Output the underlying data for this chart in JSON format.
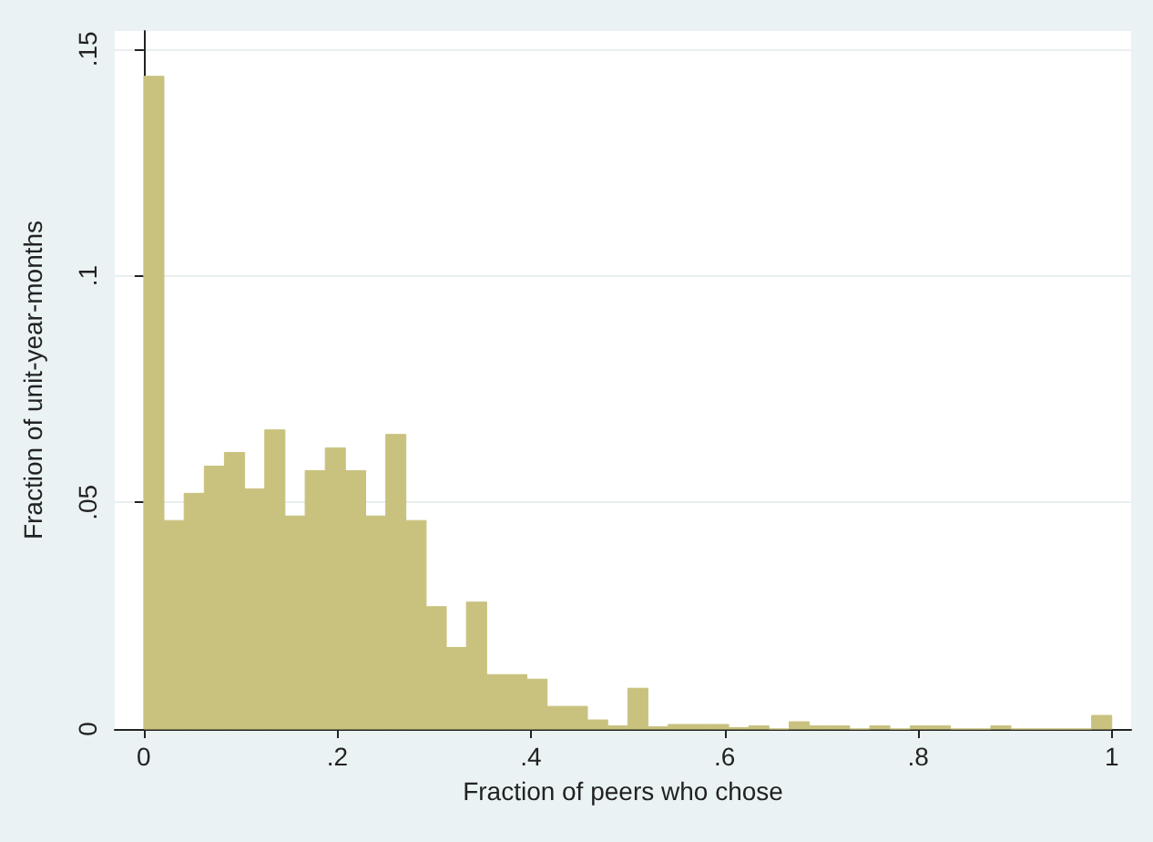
{
  "chart_data": {
    "type": "histogram",
    "xlabel": "Fraction of peers who chose",
    "ylabel": "Fraction of unit-year-months",
    "bins": [
      0,
      0.0208,
      0.0417,
      0.0625,
      0.0833,
      0.1042,
      0.125,
      0.1458,
      0.1667,
      0.1875,
      0.2083,
      0.2292,
      0.25,
      0.2708,
      0.2917,
      0.3125,
      0.3333,
      0.3542,
      0.375,
      0.3958,
      0.4167,
      0.4375,
      0.4583,
      0.4792,
      0.5,
      0.5208,
      0.5417,
      0.5625,
      0.5833,
      0.6042,
      0.625,
      0.6458,
      0.6667,
      0.6875,
      0.7083,
      0.7292,
      0.75,
      0.7708,
      0.7917,
      0.8125,
      0.8333,
      0.8542,
      0.875,
      0.8958,
      0.9167,
      0.9375,
      0.9583,
      0.9792,
      1
    ],
    "values": [
      0.144,
      0.046,
      0.052,
      0.058,
      0.061,
      0.053,
      0.066,
      0.047,
      0.057,
      0.062,
      0.057,
      0.047,
      0.065,
      0.046,
      0.027,
      0.018,
      0.028,
      0.012,
      0.012,
      0.011,
      0.005,
      0.005,
      0.002,
      0.0007,
      0.009,
      0.0005,
      0.001,
      0.001,
      0.001,
      0.0003,
      0.0007,
      0,
      0.0016,
      0.0007,
      0.0007,
      0,
      0.0007,
      0,
      0.0007,
      0.0007,
      0,
      0,
      0.0007,
      0,
      0,
      0,
      0,
      0.003
    ],
    "color": "#c9c27f",
    "xlim": [
      -0.03,
      1.02
    ],
    "ylim": [
      0,
      0.154
    ],
    "xticks": [
      0,
      {
        "value": 0.2,
        "label": ".2"
      },
      {
        "value": 0.4,
        "label": ".4"
      },
      {
        "value": 0.6,
        "label": ".6"
      },
      {
        "value": 0.8,
        "label": ".8"
      },
      1
    ],
    "yticks": [
      0,
      {
        "value": 0.05,
        "label": ".05"
      },
      {
        "value": 0.1,
        "label": ".1"
      },
      {
        "value": 0.15,
        "label": ".15"
      }
    ],
    "grid": "y"
  }
}
